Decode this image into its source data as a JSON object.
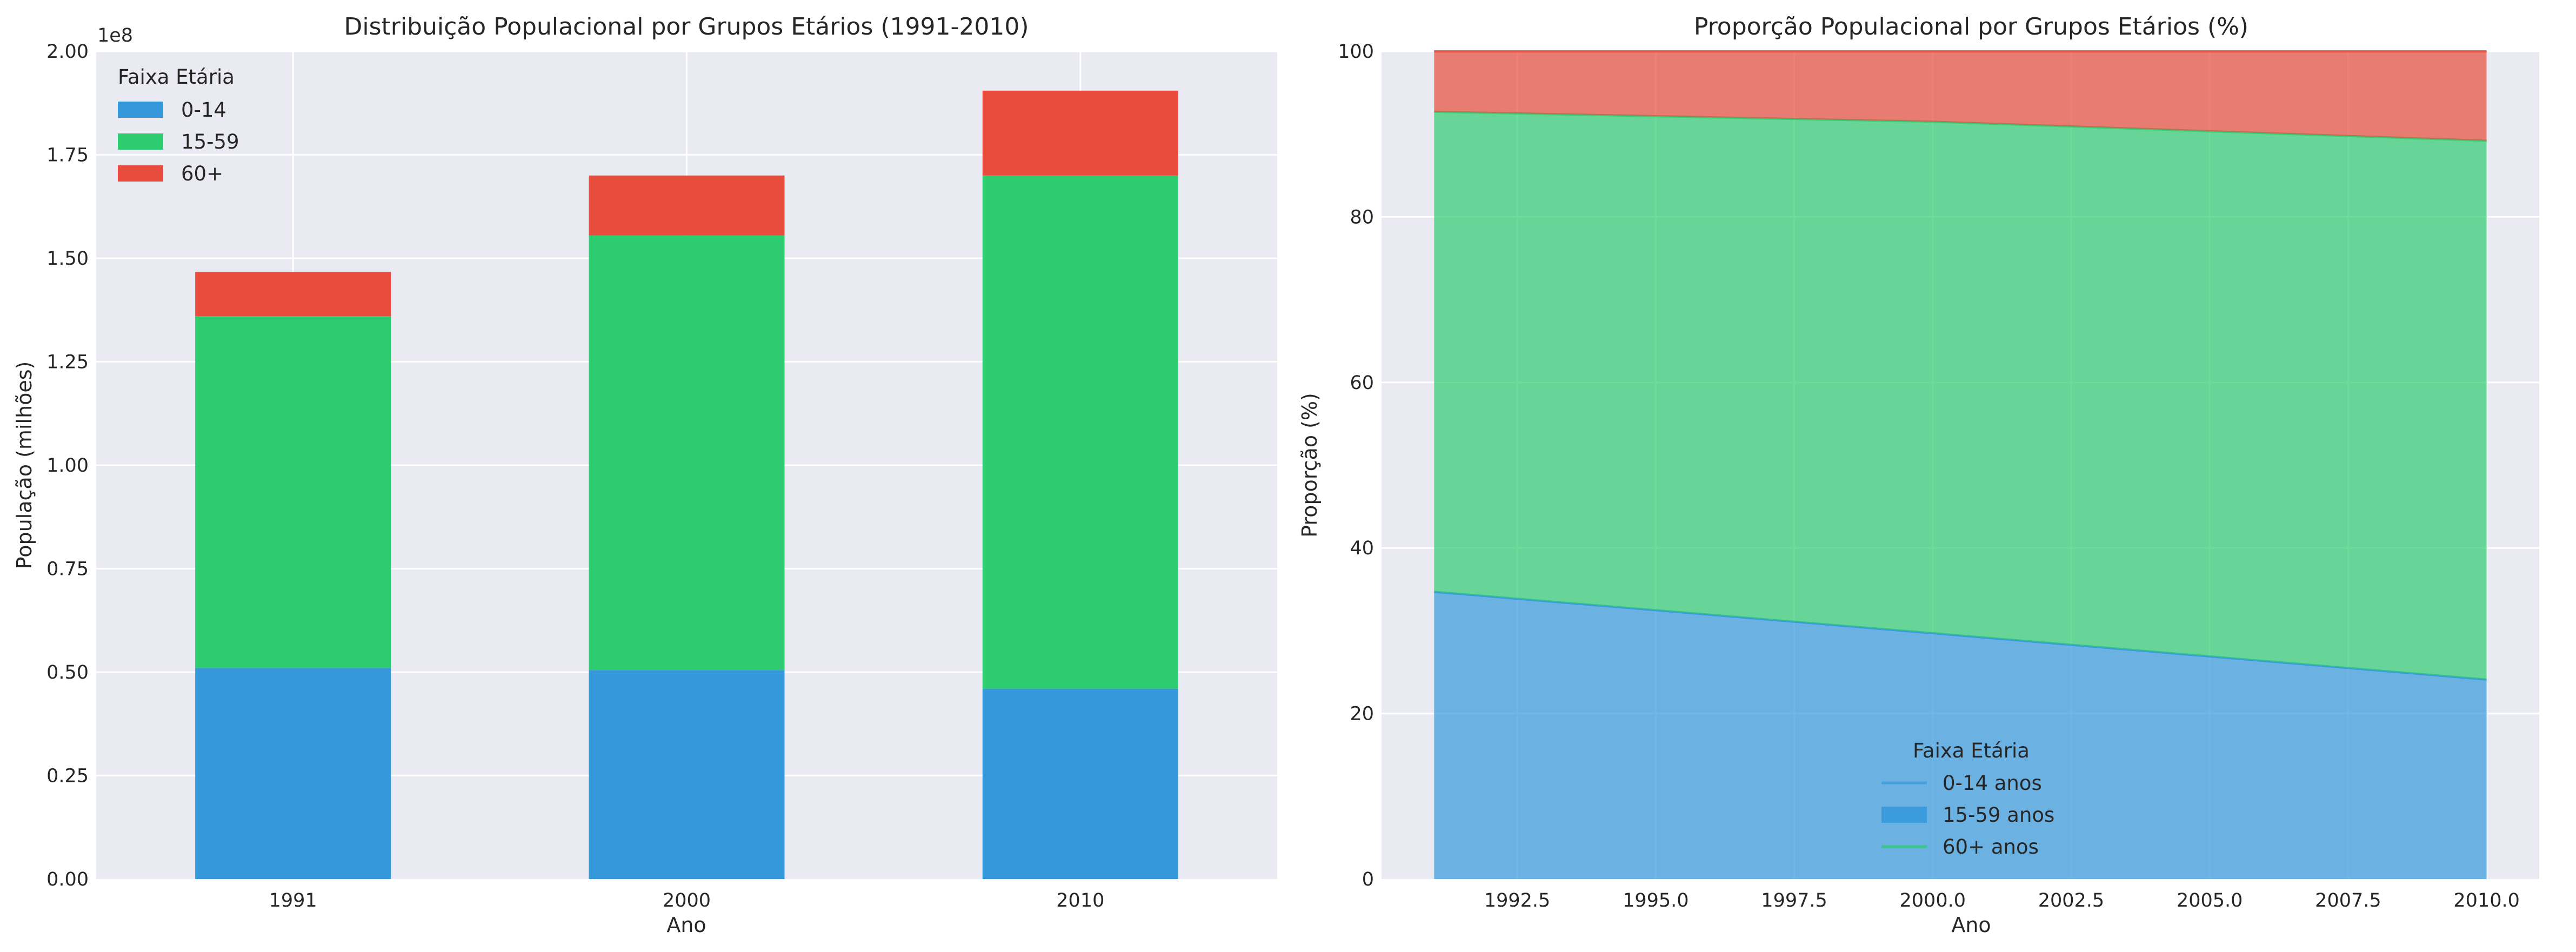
{
  "chart_data": [
    {
      "type": "bar",
      "stacked": true,
      "title": "Distribuição Populacional por Grupos Etários (1991-2010)",
      "xlabel": "Ano",
      "ylabel": "População (milhões)",
      "y_offset_text": "1e8",
      "categories": [
        "1991",
        "2000",
        "2010"
      ],
      "ylim": [
        0,
        2.0
      ],
      "yticks": [
        0.0,
        0.25,
        0.5,
        0.75,
        1.0,
        1.25,
        1.5,
        1.75,
        2.0
      ],
      "ytick_labels": [
        "0.00",
        "0.25",
        "0.50",
        "0.75",
        "1.00",
        "1.25",
        "1.50",
        "1.75",
        "2.00"
      ],
      "unit_multiplier": 100000000,
      "series": [
        {
          "name": "0-14",
          "color": "#3498db",
          "values": [
            0.51,
            0.505,
            0.46
          ]
        },
        {
          "name": "15-59",
          "color": "#2ecc71",
          "values": [
            0.85,
            1.05,
            1.24
          ]
        },
        {
          "name": "60+",
          "color": "#e74c3c",
          "values": [
            0.107,
            0.145,
            0.205
          ]
        }
      ],
      "legend": {
        "title": "Faixa Etária",
        "position": "top-left",
        "labels": [
          "0-14",
          "15-59",
          "60+"
        ]
      },
      "grid": true
    },
    {
      "type": "area",
      "stacked": true,
      "title": "Proporção Populacional por Grupos Etários (%)",
      "xlabel": "Ano",
      "ylabel": "Proporção (%)",
      "x": [
        1991,
        2000,
        2010
      ],
      "xlim": [
        1991,
        2010
      ],
      "ylim": [
        0,
        100
      ],
      "xticks": [
        1992.5,
        1995.0,
        1997.5,
        2000.0,
        2002.5,
        2005.0,
        2007.5,
        2010.0
      ],
      "xtick_labels": [
        "1992.5",
        "1995.0",
        "1997.5",
        "2000.0",
        "2002.5",
        "2005.0",
        "2007.5",
        "2010.0"
      ],
      "yticks": [
        0,
        20,
        40,
        60,
        80,
        100
      ],
      "ytick_labels": [
        "0",
        "20",
        "40",
        "60",
        "80",
        "100"
      ],
      "series": [
        {
          "name": "0-14 anos",
          "color": "#3498db",
          "values": [
            34.7,
            29.7,
            24.1
          ]
        },
        {
          "name": "15-59 anos",
          "color": "#2ecc71",
          "values": [
            58.0,
            61.8,
            65.1
          ]
        },
        {
          "name": "60+ anos",
          "color": "#e74c3c",
          "values": [
            7.3,
            8.5,
            10.8
          ]
        }
      ],
      "legend": {
        "title": "Faixa Etária",
        "position": "lower-center",
        "labels": [
          "0-14 anos",
          "15-59 anos",
          "60+ anos"
        ]
      },
      "grid": true
    }
  ]
}
